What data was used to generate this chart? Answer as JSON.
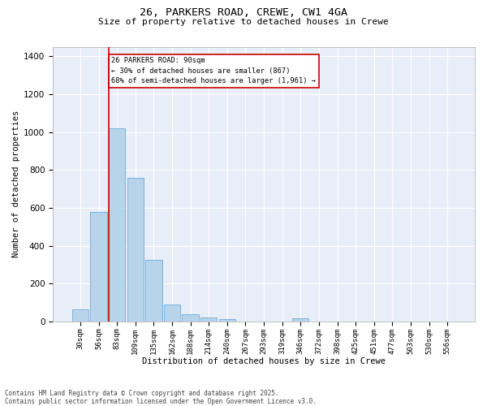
{
  "title_line1": "26, PARKERS ROAD, CREWE, CW1 4GA",
  "title_line2": "Size of property relative to detached houses in Crewe",
  "xlabel": "Distribution of detached houses by size in Crewe",
  "ylabel": "Number of detached properties",
  "categories": [
    "30sqm",
    "56sqm",
    "83sqm",
    "109sqm",
    "135sqm",
    "162sqm",
    "188sqm",
    "214sqm",
    "240sqm",
    "267sqm",
    "293sqm",
    "319sqm",
    "346sqm",
    "372sqm",
    "398sqm",
    "425sqm",
    "451sqm",
    "477sqm",
    "503sqm",
    "530sqm",
    "556sqm"
  ],
  "values": [
    65,
    580,
    1020,
    760,
    325,
    90,
    38,
    22,
    13,
    0,
    0,
    0,
    15,
    0,
    0,
    0,
    0,
    0,
    0,
    0,
    0
  ],
  "bar_color": "#b8d4ea",
  "bar_edge_color": "#5a9fd4",
  "vline_color": "#cc0000",
  "vline_x_index": 2,
  "annotation_text": "26 PARKERS ROAD: 90sqm\n← 30% of detached houses are smaller (867)\n68% of semi-detached houses are larger (1,961) →",
  "annotation_box_facecolor": "white",
  "annotation_box_edgecolor": "#cc0000",
  "ylim_max": 1450,
  "yticks": [
    0,
    200,
    400,
    600,
    800,
    1000,
    1200,
    1400
  ],
  "bg_color": "#e8eef8",
  "grid_color": "#ffffff",
  "footnote": "Contains HM Land Registry data © Crown copyright and database right 2025.\nContains public sector information licensed under the Open Government Licence v3.0."
}
